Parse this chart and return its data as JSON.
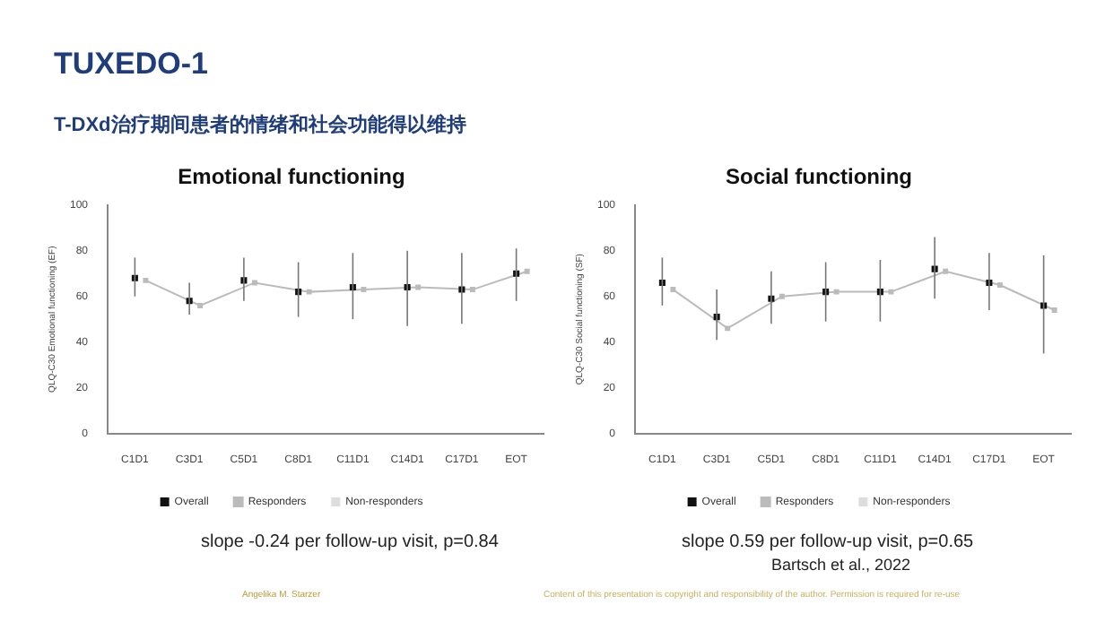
{
  "chart_data": [
    {
      "type": "scatter",
      "title": "Emotional functioning",
      "ylabel": "QLQ-C30 Emotional functioning (EF)",
      "categories": [
        "C1D1",
        "C3D1",
        "C5D1",
        "C8D1",
        "C11D1",
        "C14D1",
        "C17D1",
        "EOT"
      ],
      "series": [
        {
          "name": "Overall",
          "color": "#111111",
          "values": [
            68,
            58,
            67,
            62,
            64,
            64,
            63,
            70
          ],
          "errors": [
            [
              60,
              77
            ],
            [
              52,
              66
            ],
            [
              58,
              77
            ],
            [
              51,
              75
            ],
            [
              50,
              79
            ],
            [
              47,
              80
            ],
            [
              48,
              79
            ],
            [
              58,
              81
            ]
          ]
        },
        {
          "name": "Responders",
          "type": "line",
          "color": "#bbbbbb",
          "values": [
            67,
            56,
            66,
            62,
            63,
            64,
            63,
            71
          ]
        },
        {
          "name": "Non-responders",
          "color": "#dddddd",
          "values": [
            null,
            null,
            null,
            null,
            null,
            null,
            null,
            null
          ]
        }
      ],
      "ylim": [
        0,
        100
      ],
      "yticks": [
        0,
        20,
        40,
        60,
        80,
        100
      ],
      "grid": false,
      "legend": "bottom",
      "marker": "square",
      "annotations": [
        "TUXEDO-1",
        "T-DXd治疗期间患者的情绪和社会功能得以维持",
        "slope -0.24 per follow-up visit, p=0.84"
      ]
    },
    {
      "type": "scatter",
      "title": "Social functioning",
      "ylabel": "QLQ-C30 Social functioning (SF)",
      "categories": [
        "C1D1",
        "C3D1",
        "C5D1",
        "C8D1",
        "C11D1",
        "C14D1",
        "C17D1",
        "EOT"
      ],
      "series": [
        {
          "name": "Overall",
          "color": "#111111",
          "values": [
            66,
            51,
            59,
            62,
            62,
            72,
            66,
            56
          ],
          "errors": [
            [
              56,
              77
            ],
            [
              41,
              63
            ],
            [
              48,
              71
            ],
            [
              49,
              75
            ],
            [
              49,
              76
            ],
            [
              59,
              86
            ],
            [
              54,
              79
            ],
            [
              35,
              78
            ]
          ]
        },
        {
          "name": "Responders",
          "type": "line",
          "color": "#bbbbbb",
          "values": [
            63,
            46,
            60,
            62,
            62,
            71,
            65,
            54
          ]
        },
        {
          "name": "Non-responders",
          "color": "#dddddd",
          "values": [
            null,
            null,
            null,
            null,
            null,
            null,
            null,
            null
          ]
        }
      ],
      "ylim": [
        0,
        100
      ],
      "yticks": [
        0,
        20,
        40,
        60,
        80,
        100
      ],
      "grid": false,
      "legend": "bottom",
      "marker": "square",
      "annotations": [
        "slope 0.59 per follow-up visit, p=0.65",
        "Bartsch et al., 2022",
        "Angelika M. Starzer",
        "Content of this presentation is copyright and responsibility of the author. Permission is required for re-use"
      ]
    }
  ]
}
